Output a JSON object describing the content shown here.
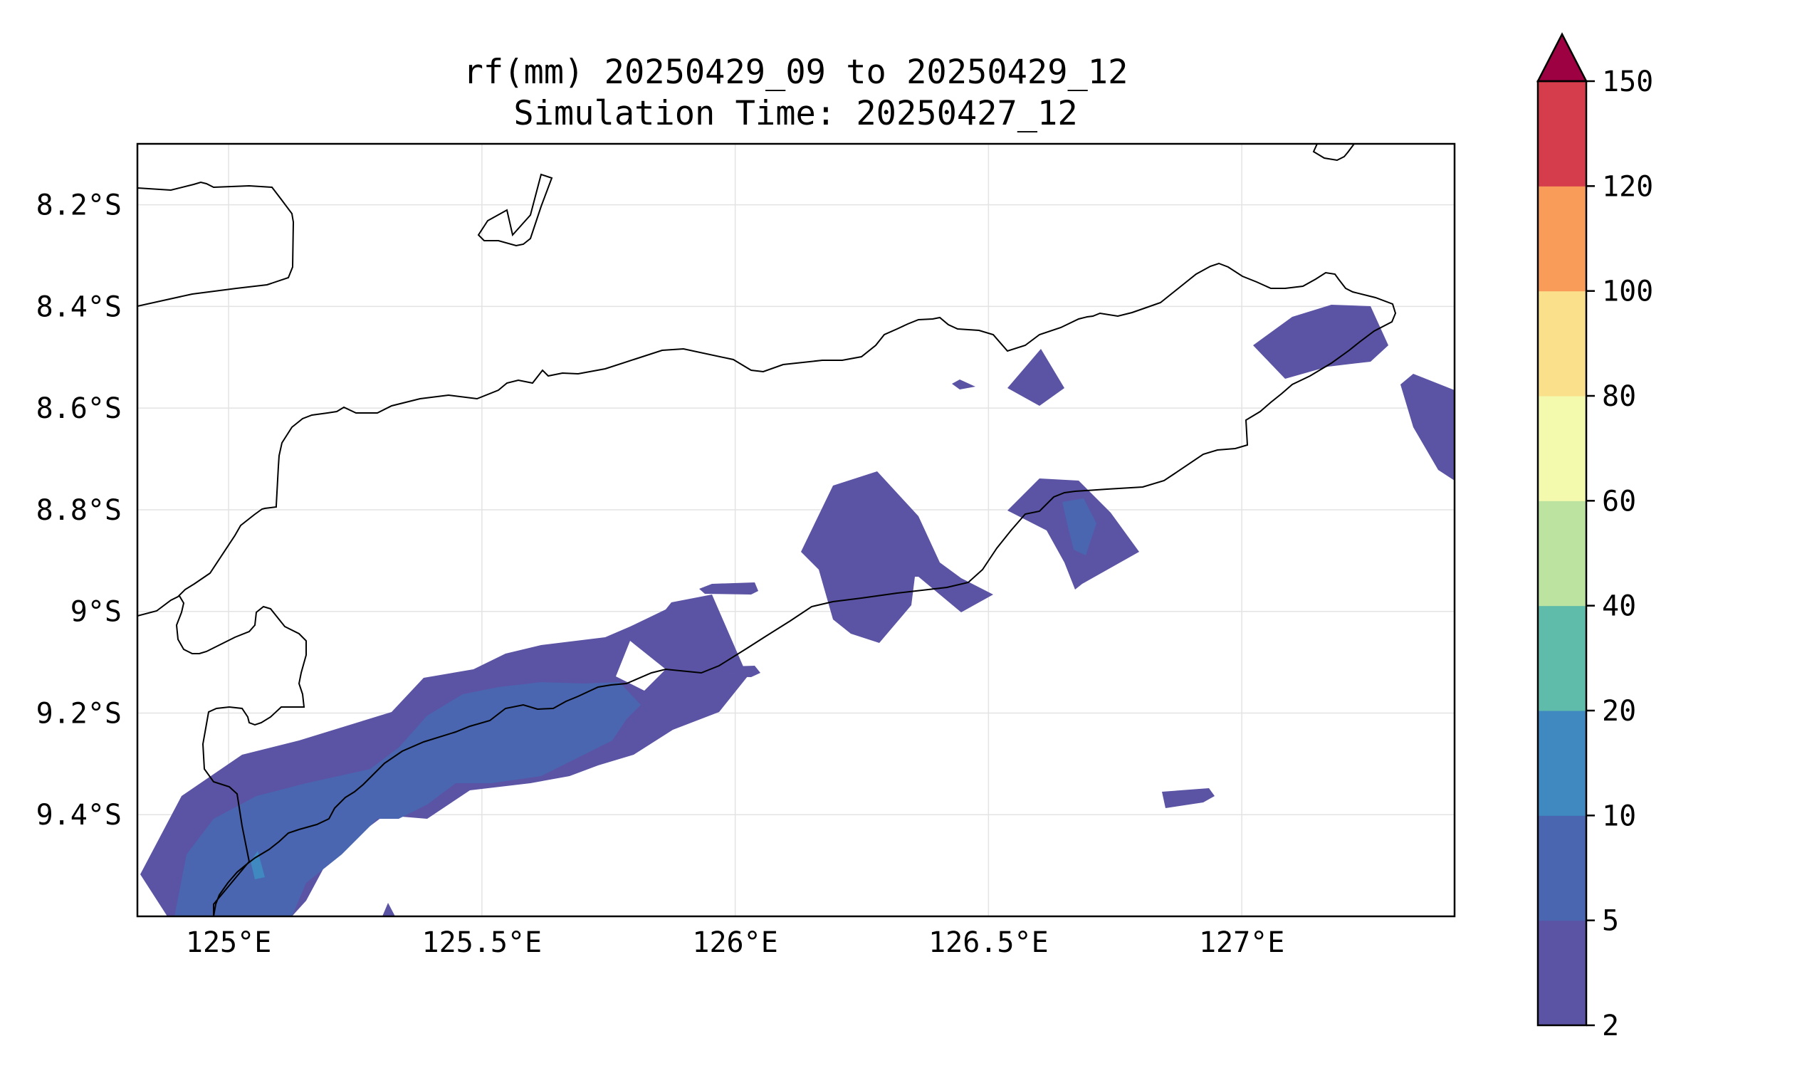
{
  "title": {
    "line1": "rf(mm) 20250429_09 to 20250429_12",
    "line2": "Simulation Time: 20250427_12"
  },
  "map": {
    "extent": {
      "lon_min": 124.82,
      "lon_max": 127.42,
      "lat_min": -9.6,
      "lat_max": -8.08
    },
    "x_ticks": [
      {
        "value": 125.0,
        "label": "125°E"
      },
      {
        "value": 125.5,
        "label": "125.5°E"
      },
      {
        "value": 126.0,
        "label": "126°E"
      },
      {
        "value": 126.5,
        "label": "126.5°E"
      },
      {
        "value": 127.0,
        "label": "127°E"
      }
    ],
    "y_ticks": [
      {
        "value": -8.2,
        "label": "8.2°S"
      },
      {
        "value": -8.4,
        "label": "8.4°S"
      },
      {
        "value": -8.6,
        "label": "8.6°S"
      },
      {
        "value": -8.8,
        "label": "8.8°S"
      },
      {
        "value": -9.0,
        "label": "9°S"
      },
      {
        "value": -9.2,
        "label": "9.2°S"
      },
      {
        "value": -9.4,
        "label": "9.4°S"
      }
    ],
    "grid": true,
    "coastline_color": "#000000",
    "gridline_color": "#e3e3e3"
  },
  "colorbar": {
    "bounds": [
      "2",
      "5",
      "10",
      "20",
      "40",
      "60",
      "80",
      "100",
      "120",
      "150"
    ],
    "colors": [
      "#5b53a4",
      "#4a66b0",
      "#3f88c0",
      "#5fbcaa",
      "#bde3a0",
      "#f3f9ad",
      "#fbe08c",
      "#f99c5a",
      "#d53d4c"
    ],
    "extend_max_color": "#9e0142",
    "extend": "max"
  }
}
